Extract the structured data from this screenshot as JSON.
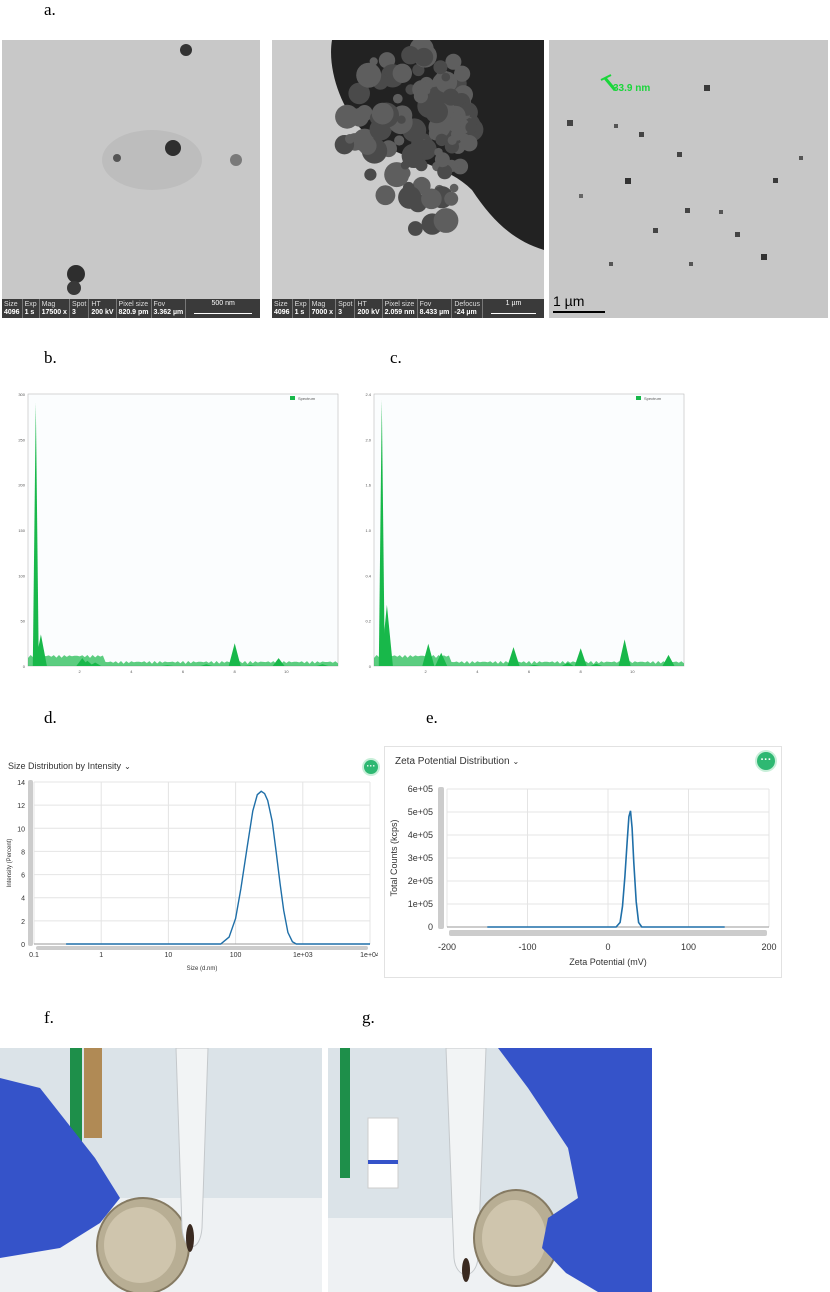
{
  "panel_labels": {
    "a": "a.",
    "b": "b.",
    "c": "c.",
    "d": "d.",
    "e": "e.",
    "f": "f.",
    "g": "g."
  },
  "tem_images": [
    {
      "info": [
        {
          "k": "Size",
          "v": "4096"
        },
        {
          "k": "Exp",
          "v": "1 s"
        },
        {
          "k": "Mag",
          "v": "17500 x"
        },
        {
          "k": "Spot",
          "v": "3"
        },
        {
          "k": "HT",
          "v": "200 kV"
        },
        {
          "k": "Pixel size",
          "v": "820.9 pm"
        },
        {
          "k": "Fov",
          "v": "3.362 µm"
        }
      ],
      "scale_bar": "500 nm"
    },
    {
      "info": [
        {
          "k": "Size",
          "v": "4096"
        },
        {
          "k": "Exp",
          "v": "1 s"
        },
        {
          "k": "Mag",
          "v": "7000 x"
        },
        {
          "k": "Spot",
          "v": "3"
        },
        {
          "k": "HT",
          "v": "200 kV"
        },
        {
          "k": "Pixel size",
          "v": "2.059 nm"
        },
        {
          "k": "Fov",
          "v": "8.433 µm"
        },
        {
          "k": "Defocus",
          "v": "-24 µm"
        }
      ],
      "scale_bar": "1 µm"
    },
    {
      "measurement": "33.9 nm",
      "scale_bar": "1 µm"
    }
  ],
  "tem_colors": {
    "background": "#c6c6c6",
    "particle": "#3a3a3a",
    "measurement": "#19d63a"
  },
  "chart_data": [
    {
      "type": "bar",
      "title": "",
      "legend": [
        "Spectrum"
      ],
      "color": "#18b84a",
      "categories": [
        "0.3",
        "0.5",
        "2.1",
        "2.3",
        "2.6",
        "5.4",
        "6.9",
        "8.0",
        "8.6",
        "9.7",
        "11.4"
      ],
      "values": [
        300,
        36,
        9,
        6,
        4,
        1,
        2,
        26,
        1,
        9,
        2
      ],
      "ylim": [
        0,
        310
      ],
      "xlim": [
        0,
        12
      ],
      "yticks": [
        "0",
        "50",
        "100",
        "150",
        "200",
        "250",
        "300"
      ],
      "xticks": [
        "2",
        "4",
        "6",
        "8",
        "10"
      ]
    },
    {
      "type": "bar",
      "title": "",
      "legend": [
        "Spectrum"
      ],
      "color": "#18b84a",
      "categories": [
        "0.3",
        "0.5",
        "2.1",
        "2.6",
        "5.4",
        "6.2",
        "7.5",
        "8.0",
        "8.6",
        "9.7",
        "11.4"
      ],
      "values": [
        2.4,
        0.55,
        0.2,
        0.12,
        0.17,
        0.01,
        0.03,
        0.16,
        0.02,
        0.24,
        0.1
      ],
      "ylim": [
        0,
        2.45
      ],
      "xlim": [
        0,
        12
      ],
      "yticks": [
        "0",
        "0.2",
        "0.4",
        "1.0",
        "1.6",
        "2.0",
        "2.4"
      ],
      "xticks": [
        "2",
        "4",
        "6",
        "8",
        "10"
      ]
    },
    {
      "type": "line",
      "title": "Size Distribution by Intensity",
      "xlabel": "Size (d.nm)",
      "ylabel": "Intensity (Percent)",
      "xscale": "log",
      "xlim": [
        0.1,
        10000
      ],
      "ylim": [
        0,
        14
      ],
      "xticks": [
        "0.1",
        "1",
        "10",
        "100",
        "1e+03",
        "1e+04"
      ],
      "yticks": [
        "0",
        "2",
        "4",
        "6",
        "8",
        "10",
        "12",
        "14"
      ],
      "color": "#1f6fa8",
      "x": [
        0.3,
        60,
        80,
        100,
        120,
        150,
        180,
        210,
        240,
        270,
        300,
        350,
        400,
        460,
        520,
        600,
        700,
        800,
        10000
      ],
      "y": [
        0,
        0,
        0.6,
        2.2,
        4.8,
        8.5,
        11.5,
        12.9,
        13.2,
        13.0,
        12.4,
        10.6,
        8.0,
        5.2,
        2.9,
        1.0,
        0.2,
        0,
        0
      ]
    },
    {
      "type": "line",
      "title": "Zeta Potential Distribution",
      "xlabel": "Zeta Potential (mV)",
      "ylabel": "Total Counts (kcps)",
      "xlim": [
        -200,
        200
      ],
      "ylim": [
        0,
        600000
      ],
      "xticks": [
        "-200",
        "-100",
        "0",
        "100",
        "200"
      ],
      "yticks": [
        "0",
        "1e+05",
        "2e+05",
        "3e+05",
        "4e+05",
        "5e+05",
        "6e+05"
      ],
      "color": "#1f6fa8",
      "x": [
        -150,
        10,
        15,
        18,
        21,
        24,
        26,
        28,
        30,
        32,
        35,
        38,
        42,
        145
      ],
      "y": [
        0,
        0,
        20000,
        90000,
        220000,
        380000,
        480000,
        505000,
        430000,
        280000,
        110000,
        20000,
        0,
        0
      ]
    }
  ]
}
